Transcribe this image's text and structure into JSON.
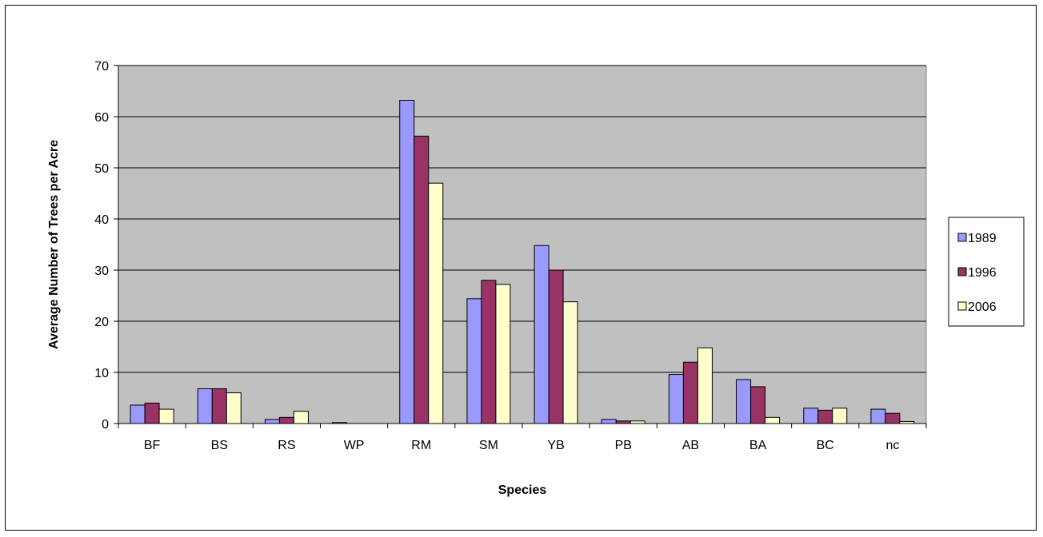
{
  "chart_data": {
    "type": "bar",
    "title": "",
    "xlabel": "Species",
    "ylabel": "Average Number of Trees per Acre",
    "categories": [
      "BF",
      "BS",
      "RS",
      "WP",
      "RM",
      "SM",
      "YB",
      "PB",
      "AB",
      "BA",
      "BC",
      "nc"
    ],
    "series": [
      {
        "name": "1989",
        "color": "#9999ff",
        "values": [
          3.6,
          6.8,
          0.8,
          0.2,
          63.2,
          24.4,
          34.8,
          0.8,
          9.6,
          8.6,
          3.0,
          2.8
        ]
      },
      {
        "name": "1996",
        "color": "#993366",
        "values": [
          4.0,
          6.8,
          1.2,
          0.0,
          56.2,
          28.0,
          30.0,
          0.5,
          12.0,
          7.2,
          2.6,
          2.0
        ]
      },
      {
        "name": "2006",
        "color": "#ffffcc",
        "values": [
          2.8,
          6.0,
          2.4,
          0.0,
          47.0,
          27.2,
          23.8,
          0.5,
          14.8,
          1.2,
          3.0,
          0.4
        ]
      }
    ],
    "ylim": [
      0,
      70
    ],
    "yticks": [
      0,
      10,
      20,
      30,
      40,
      50,
      60,
      70
    ],
    "grid": true,
    "plot_background": "#c0c0c0",
    "legend_position": "right"
  }
}
